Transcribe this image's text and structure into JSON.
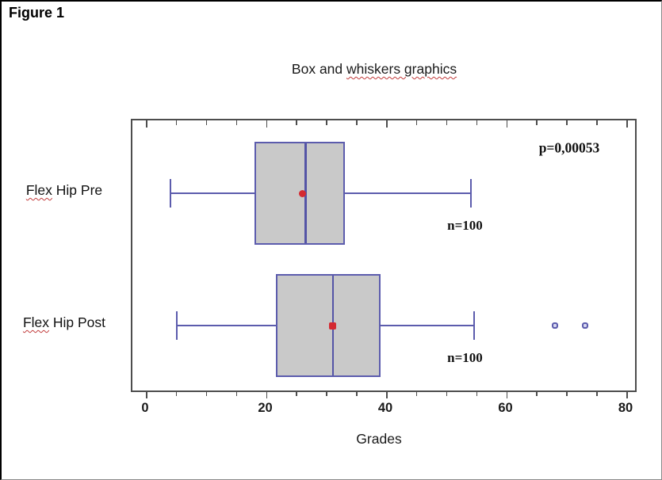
{
  "figure_label": "Figure 1",
  "chart_data": {
    "type": "boxplot",
    "orientation": "horizontal",
    "title": "Box and whiskers graphics",
    "title_plain": "Box and ",
    "title_underlined": "whiskers graphics",
    "xlabel": "Grades",
    "annotation": "p=0,00053",
    "x_axis": {
      "min": 0,
      "max": 80,
      "major_ticks": [
        0,
        20,
        40,
        60,
        80
      ],
      "minor_tick_step": 5,
      "grid": false
    },
    "series": [
      {
        "label": "Flex Hip Pre",
        "label_underlined": "Flex",
        "label_rest": " Hip Pre",
        "min": 4,
        "q1": 18,
        "median": 26.5,
        "q3": 33,
        "max": 54,
        "mean": 26,
        "outliers": [],
        "n_label": "n=100"
      },
      {
        "label": "Flex Hip Post",
        "label_underlined": "Flex",
        "label_rest": " Hip Post",
        "min": 5,
        "q1": 21.5,
        "median": 31,
        "q3": 39,
        "max": 54.5,
        "mean": 31,
        "outliers": [
          68,
          73
        ],
        "n_label": "n=100"
      }
    ]
  },
  "colors": {
    "box_fill": "#c9c9c9",
    "box_border": "#5c5cad",
    "whisker": "#5c5cad",
    "median": "#5454a6",
    "mean_marker": "#d42a32",
    "outlier_fill": "#d8d8f0",
    "plot_border": "#4d4d4d",
    "spellcheck_underline": "#c23b3b",
    "text": "#1a1a1a"
  }
}
